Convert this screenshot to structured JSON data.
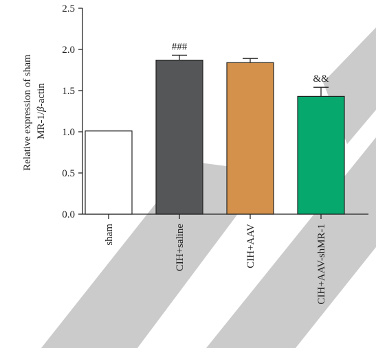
{
  "chart_data": {
    "type": "bar",
    "ylabel_lines": [
      "Relative expression of sham",
      "MR-1/",
      "β",
      "-actin"
    ],
    "xlabel": "",
    "categories": [
      "sham",
      "CIH+saline",
      "CIH+AAV",
      "CIH+AAV-shMR-1"
    ],
    "values": [
      1.01,
      1.87,
      1.84,
      1.43
    ],
    "errors": [
      0.0,
      0.06,
      0.05,
      0.11
    ],
    "annotations": [
      "",
      "###",
      "",
      "&&"
    ],
    "colors": [
      "#ffffff",
      "#555658",
      "#d3914b",
      "#07a86e"
    ],
    "ylim": [
      0,
      2.5
    ],
    "yticks": [
      0.0,
      0.5,
      1.0,
      1.5,
      2.0,
      2.5
    ],
    "ytick_labels": [
      "0.0",
      "0.5",
      "1.0",
      "1.5",
      "2.0",
      "2.5"
    ],
    "grid": false,
    "legend": "none"
  },
  "watermark": {
    "color": "#cbcbcb"
  }
}
